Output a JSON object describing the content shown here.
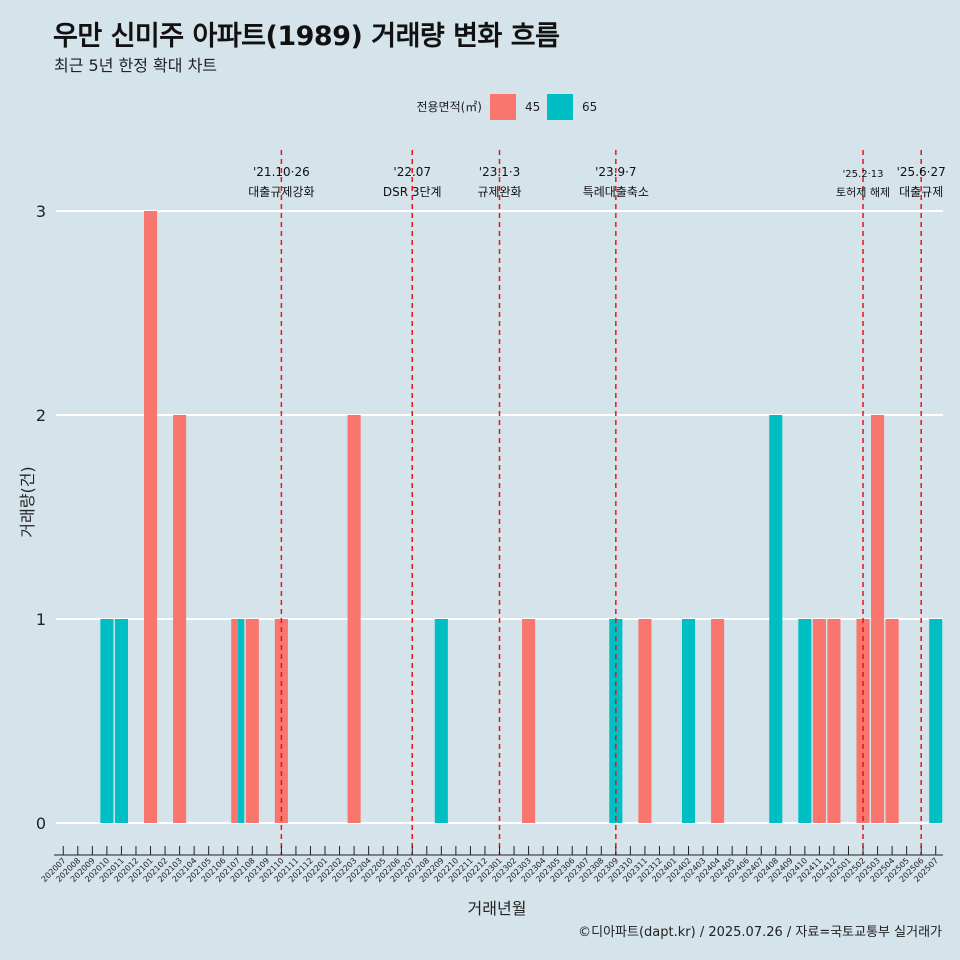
{
  "title": "우만 신미주 아파트(1989) 거래량 변화 흐름",
  "subtitle": "최근 5년 한정 확대 차트",
  "caption": "©디아파트(dapt.kr) / 2025.07.26 / 자료=국토교통부 실거래가",
  "colors": {
    "background": "#d5e3ea",
    "s45": "#f8766d",
    "s65": "#00bfc4",
    "ref_line": "#e8151b",
    "grid": "#ffffff"
  },
  "chart_data": {
    "type": "bar",
    "xlabel": "거래년월",
    "ylabel": "거래량(건)",
    "ylim": [
      0,
      3
    ],
    "yticks": [
      0,
      1,
      2,
      3
    ],
    "legend": {
      "title": "전용면적(㎡)",
      "position": "top"
    },
    "categories": [
      "202007",
      "202008",
      "202009",
      "202010",
      "202011",
      "202012",
      "202101",
      "202102",
      "202103",
      "202104",
      "202105",
      "202106",
      "202107",
      "202108",
      "202109",
      "202110",
      "202111",
      "202112",
      "202201",
      "202202",
      "202203",
      "202204",
      "202205",
      "202206",
      "202207",
      "202208",
      "202209",
      "202210",
      "202211",
      "202212",
      "202301",
      "202302",
      "202303",
      "202304",
      "202305",
      "202306",
      "202307",
      "202308",
      "202309",
      "202310",
      "202311",
      "202312",
      "202401",
      "202402",
      "202403",
      "202404",
      "202405",
      "202406",
      "202407",
      "202408",
      "202409",
      "202410",
      "202411",
      "202412",
      "202501",
      "202502",
      "202503",
      "202504",
      "202505",
      "202506",
      "202507"
    ],
    "series": [
      {
        "name": "45",
        "color": "#f8766d",
        "values": [
          0,
          0,
          0,
          0,
          0,
          0,
          3,
          0,
          2,
          0,
          0,
          0,
          1,
          1,
          0,
          1,
          0,
          0,
          0,
          0,
          2,
          0,
          0,
          0,
          0,
          0,
          0,
          0,
          0,
          0,
          0,
          0,
          1,
          0,
          0,
          0,
          0,
          0,
          0,
          0,
          1,
          0,
          0,
          0,
          0,
          1,
          0,
          0,
          0,
          0,
          0,
          0,
          1,
          1,
          0,
          1,
          2,
          1,
          0,
          0,
          0
        ]
      },
      {
        "name": "65",
        "color": "#00bfc4",
        "values": [
          0,
          0,
          0,
          1,
          1,
          0,
          0,
          0,
          0,
          0,
          0,
          0,
          1,
          0,
          0,
          0,
          0,
          0,
          0,
          0,
          0,
          0,
          0,
          0,
          0,
          0,
          1,
          0,
          0,
          0,
          0,
          0,
          0,
          0,
          0,
          0,
          0,
          0,
          1,
          0,
          0,
          0,
          0,
          1,
          0,
          0,
          0,
          0,
          0,
          2,
          0,
          1,
          0,
          0,
          0,
          0,
          0,
          0,
          0,
          0,
          1
        ]
      }
    ],
    "reference_lines": [
      {
        "month": "202110",
        "date": "'21.10·26",
        "label": "대출규제강화"
      },
      {
        "month": "202207",
        "date": "'22.07",
        "label": "DSR 3단계"
      },
      {
        "month": "202301",
        "date": "'23.1·3",
        "label": "규제완화"
      },
      {
        "month": "202309",
        "date": "'23.9·7",
        "label": "특례대출축소"
      },
      {
        "month": "202502",
        "date": "'25.2·13",
        "label": "토허제 해제"
      },
      {
        "month": "202506",
        "date": "'25.6·27",
        "label": "대출규제"
      }
    ]
  }
}
